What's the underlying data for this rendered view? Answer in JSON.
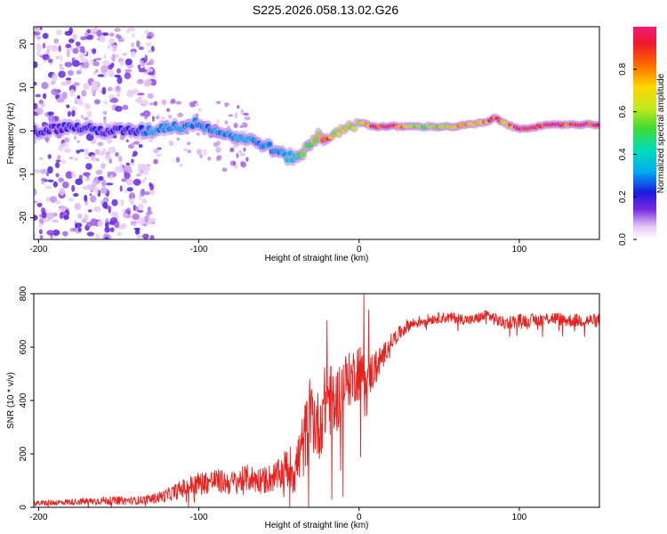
{
  "title": "S225.2026.058.13.02.G26",
  "chart_data": [
    {
      "type": "heatmap",
      "title": "S225.2026.058.13.02.G26",
      "xlabel": "Height of straight line (km)",
      "ylabel": "Frequency (Hz)",
      "xlim": [
        -203,
        150
      ],
      "ylim": [
        -25,
        24
      ],
      "xticks": [
        -200,
        -100,
        0,
        100
      ],
      "yticks": [
        -20,
        -10,
        0,
        10,
        20
      ],
      "ridge_x": [
        -200,
        -180,
        -160,
        -140,
        -130,
        -120,
        -110,
        -100,
        -90,
        -80,
        -70,
        -60,
        -50,
        -45,
        -40,
        -35,
        -30,
        -25,
        -20,
        -15,
        -10,
        -5,
        0,
        10,
        20,
        40,
        60,
        80,
        85,
        90,
        95,
        100,
        110,
        130,
        150
      ],
      "ridge_freq": [
        0,
        1,
        0,
        0,
        0,
        1,
        1,
        2,
        0,
        -1,
        -2,
        -3,
        -5,
        -6,
        -6,
        -5,
        -3,
        -1,
        -2,
        0,
        0,
        1,
        2,
        1,
        1,
        1,
        1,
        2,
        3,
        2,
        1,
        0.5,
        1,
        1.5,
        1.5
      ],
      "ridge_amplitude": [
        0.2,
        0.2,
        0.2,
        0.2,
        0.3,
        0.3,
        0.3,
        0.3,
        0.3,
        0.3,
        0.3,
        0.3,
        0.3,
        0.35,
        0.4,
        0.5,
        0.6,
        0.6,
        0.9,
        0.6,
        0.6,
        0.6,
        0.6,
        0.9,
        0.95,
        0.5,
        0.7,
        0.8,
        0.9,
        0.7,
        0.8,
        0.95,
        0.95,
        0.9,
        0.9
      ],
      "colorbar": {
        "label": "Normalized spectral amplitude",
        "range": [
          0,
          1
        ],
        "ticks": [
          0.0,
          0.2,
          0.4,
          0.6,
          0.8
        ],
        "tick_labels": [
          "0.0",
          "0.2",
          "0.4",
          "0.6",
          "0.8"
        ]
      }
    },
    {
      "type": "line",
      "xlabel": "Height of straight line (km)",
      "ylabel": "SNR (10 * v/v)",
      "xlim": [
        -203,
        150
      ],
      "ylim": [
        0,
        800
      ],
      "xticks": [
        -200,
        -100,
        0,
        100
      ],
      "yticks": [
        0,
        200,
        400,
        600,
        800
      ],
      "series": [
        {
          "name": "SNR",
          "color": "#e8211e",
          "x": [
            -200,
            -180,
            -160,
            -140,
            -130,
            -120,
            -110,
            -100,
            -90,
            -80,
            -70,
            -60,
            -50,
            -45,
            -40,
            -35,
            -30,
            -25,
            -20,
            -15,
            -10,
            -5,
            0,
            5,
            10,
            15,
            20,
            30,
            40,
            50,
            60,
            70,
            80,
            90,
            100,
            110,
            120,
            130,
            140,
            150
          ],
          "y": [
            15,
            20,
            25,
            25,
            30,
            45,
            70,
            90,
            100,
            90,
            110,
            100,
            120,
            150,
            140,
            230,
            350,
            300,
            420,
            380,
            470,
            480,
            520,
            490,
            520,
            570,
            620,
            680,
            700,
            710,
            710,
            700,
            720,
            690,
            700,
            700,
            710,
            700,
            700,
            700
          ],
          "noise_amplitude": [
            10,
            12,
            15,
            15,
            18,
            25,
            35,
            45,
            45,
            45,
            50,
            50,
            60,
            80,
            100,
            130,
            150,
            130,
            150,
            130,
            110,
            100,
            120,
            90,
            70,
            40,
            30,
            25,
            20,
            20,
            20,
            20,
            22,
            25,
            25,
            25,
            25,
            25,
            25,
            25
          ],
          "spikes": [
            {
              "x": -20,
              "y": 700
            },
            {
              "x": 3,
              "y": 800
            },
            {
              "x": 6,
              "y": 740
            },
            {
              "x": 1,
              "y": 190
            },
            {
              "x": -10,
              "y": 40
            },
            {
              "x": -17,
              "y": 30
            }
          ]
        }
      ]
    }
  ]
}
